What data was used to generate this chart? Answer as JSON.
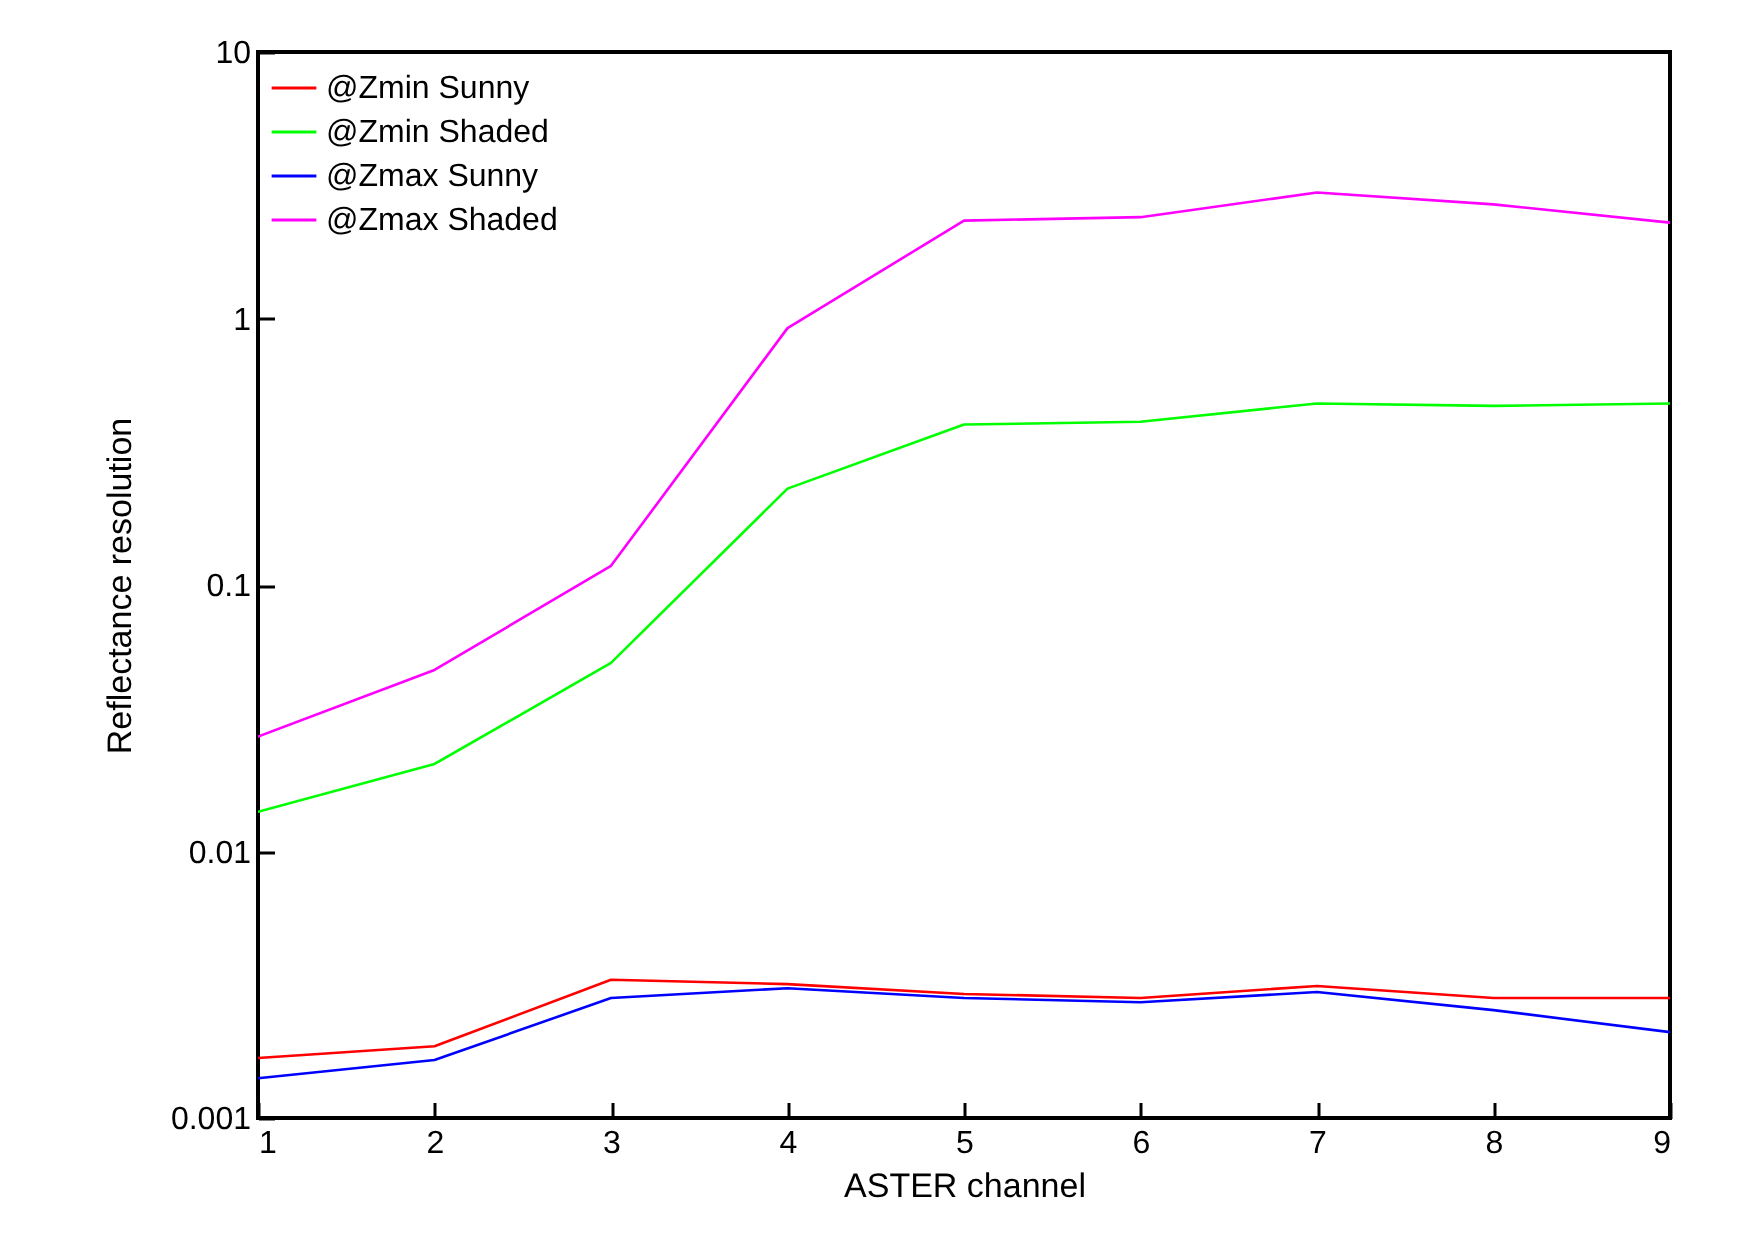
{
  "chart_data": {
    "type": "line",
    "xlabel": "ASTER channel",
    "ylabel": "Reflectance resolution",
    "x": [
      1,
      2,
      3,
      4,
      5,
      6,
      7,
      8,
      9
    ],
    "xlim": [
      1,
      9
    ],
    "xticks": [
      1,
      2,
      3,
      4,
      5,
      6,
      7,
      8,
      9
    ],
    "ylim": [
      0.001,
      10
    ],
    "yticks": [
      0.001,
      0.01,
      0.1,
      1,
      10
    ],
    "log": true,
    "grid": false,
    "legend": "top left",
    "marker": "none",
    "series": [
      {
        "name": "@Zmin Sunny",
        "color": "#ff0000",
        "values": [
          0.00168,
          0.00186,
          0.0033,
          0.00318,
          0.00292,
          0.00282,
          0.00313,
          0.00282,
          0.00282
        ]
      },
      {
        "name": "@Zmin Shaded",
        "color": "#00ff00",
        "values": [
          0.0141,
          0.0213,
          0.051,
          0.23,
          0.4,
          0.41,
          0.48,
          0.47,
          0.48
        ]
      },
      {
        "name": "@Zmax Sunny",
        "color": "#0000ff",
        "values": [
          0.00141,
          0.00165,
          0.00282,
          0.00307,
          0.00282,
          0.00272,
          0.00297,
          0.00254,
          0.0021
        ]
      },
      {
        "name": "@Zmax Shaded",
        "color": "#ff00ff",
        "values": [
          0.027,
          0.048,
          0.118,
          0.92,
          2.33,
          2.4,
          2.97,
          2.68,
          2.29
        ]
      }
    ]
  }
}
